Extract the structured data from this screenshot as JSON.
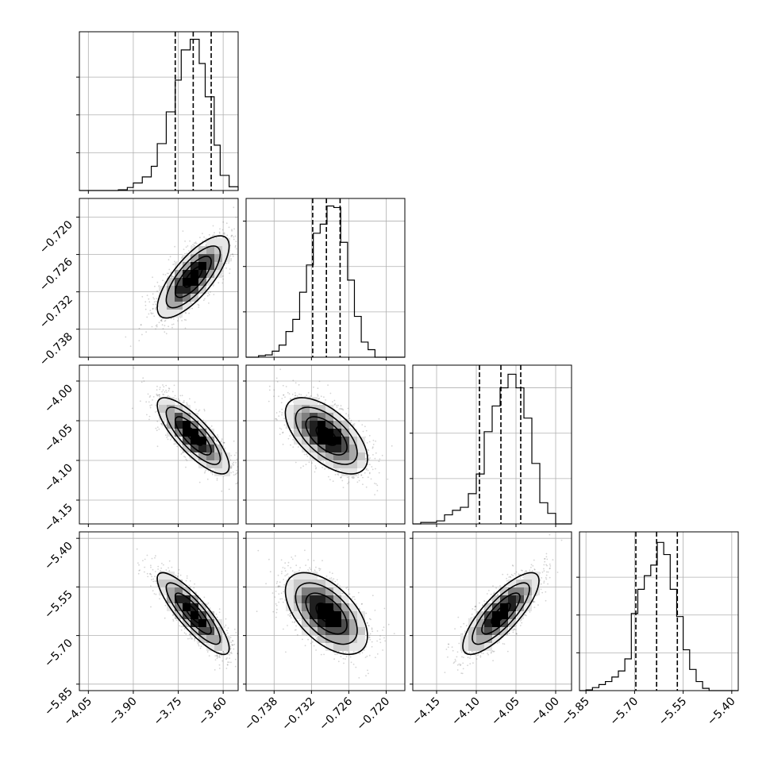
{
  "chart_data": {
    "type": "corner",
    "title": "",
    "grid": true,
    "parameters": [
      {
        "range": [
          -4.08,
          -3.55
        ],
        "ticks": [
          "−4.05",
          "−3.90",
          "−3.75",
          "−3.60"
        ],
        "tick_values": [
          -4.05,
          -3.9,
          -3.75,
          -3.6
        ],
        "quantiles": [
          -3.76,
          -3.7,
          -3.64
        ],
        "hist_edges": [
          -3.95,
          -3.92,
          -3.9,
          -3.87,
          -3.84,
          -3.82,
          -3.79,
          -3.76,
          -3.74,
          -3.71,
          -3.68,
          -3.66,
          -3.63,
          -3.61,
          -3.58,
          -3.55
        ],
        "hist_heights": [
          0.005,
          0.02,
          0.05,
          0.09,
          0.16,
          0.31,
          0.52,
          0.73,
          0.93,
          1.0,
          0.84,
          0.62,
          0.3,
          0.1,
          0.025
        ],
        "hist_ticks": [
          0.25,
          0.5,
          0.75
        ]
      },
      {
        "range": [
          -0.7425,
          -0.717
        ],
        "ticks": [
          "−0.738",
          "−0.732",
          "−0.726",
          "−0.720"
        ],
        "tick_values": [
          -0.738,
          -0.732,
          -0.726,
          -0.72
        ],
        "quantiles": [
          -0.7318,
          -0.7296,
          -0.7274
        ],
        "hist_edges": [
          -0.7405,
          -0.7394,
          -0.7383,
          -0.7372,
          -0.7361,
          -0.735,
          -0.7339,
          -0.7328,
          -0.7317,
          -0.7306,
          -0.7295,
          -0.7284,
          -0.7273,
          -0.7262,
          -0.7251,
          -0.724,
          -0.7229,
          -0.7218
        ],
        "hist_heights": [
          0.01,
          0.015,
          0.04,
          0.08,
          0.17,
          0.25,
          0.43,
          0.61,
          0.82,
          0.88,
          1.0,
          0.99,
          0.76,
          0.51,
          0.27,
          0.1,
          0.05
        ],
        "hist_ticks": [
          0.3,
          0.6,
          0.9
        ]
      },
      {
        "range": [
          -4.18,
          -3.98
        ],
        "ticks": [
          "−4.15",
          "−4.10",
          "−4.05",
          "−4.00"
        ],
        "tick_values": [
          -4.15,
          -4.1,
          -4.05,
          -4.0
        ],
        "quantiles": [
          -4.096,
          -4.069,
          -4.044
        ],
        "hist_edges": [
          -4.17,
          -4.16,
          -4.15,
          -4.14,
          -4.13,
          -4.12,
          -4.11,
          -4.1,
          -4.09,
          -4.08,
          -4.07,
          -4.06,
          -4.05,
          -4.04,
          -4.03,
          -4.02,
          -4.01,
          -4.0
        ],
        "hist_heights": [
          0.01,
          0.01,
          0.02,
          0.06,
          0.09,
          0.11,
          0.2,
          0.33,
          0.61,
          0.78,
          0.9,
          0.99,
          0.9,
          0.7,
          0.4,
          0.14,
          0.07
        ],
        "hist_ticks": [
          0.3,
          0.6,
          0.9
        ]
      },
      {
        "range": [
          -5.87,
          -5.38
        ],
        "ticks": [
          "−5.85",
          "−5.70",
          "−5.55",
          "−5.40"
        ],
        "tick_values": [
          -5.85,
          -5.7,
          -5.55,
          -5.4
        ],
        "quantiles": [
          -5.696,
          -5.632,
          -5.568
        ],
        "hist_edges": [
          -5.85,
          -5.83,
          -5.81,
          -5.79,
          -5.77,
          -5.75,
          -5.73,
          -5.71,
          -5.69,
          -5.67,
          -5.65,
          -5.63,
          -5.61,
          -5.59,
          -5.57,
          -5.55,
          -5.53,
          -5.51,
          -5.49,
          -5.47
        ],
        "hist_heights": [
          0.005,
          0.02,
          0.04,
          0.06,
          0.09,
          0.13,
          0.21,
          0.51,
          0.67,
          0.76,
          0.83,
          0.98,
          0.9,
          0.67,
          0.49,
          0.27,
          0.14,
          0.06,
          0.015
        ],
        "hist_ticks": [
          0.25,
          0.5,
          0.75
        ]
      }
    ],
    "pairs": [
      {
        "row": 1,
        "col": 0,
        "mean": [
          -3.7,
          -0.7296
        ],
        "sd": [
          0.06,
          0.0033
        ],
        "rho": 0.75,
        "corr_points": 1500
      },
      {
        "row": 2,
        "col": 0,
        "mean": [
          -3.7,
          -4.069
        ],
        "sd": [
          0.06,
          0.024
        ],
        "rho": -0.8,
        "corr_points": 1500
      },
      {
        "row": 2,
        "col": 1,
        "mean": [
          -0.7296,
          -4.069
        ],
        "sd": [
          0.0033,
          0.024
        ],
        "rho": -0.6,
        "corr_points": 1500
      },
      {
        "row": 3,
        "col": 0,
        "mean": [
          -3.7,
          -5.632
        ],
        "sd": [
          0.06,
          0.063
        ],
        "rho": -0.85,
        "corr_points": 1500
      },
      {
        "row": 3,
        "col": 1,
        "mean": [
          -0.7296,
          -5.632
        ],
        "sd": [
          0.0033,
          0.063
        ],
        "rho": -0.55,
        "corr_points": 1500
      },
      {
        "row": 3,
        "col": 2,
        "mean": [
          -4.069,
          -5.632
        ],
        "sd": [
          0.024,
          0.063
        ],
        "rho": 0.8,
        "corr_points": 1500
      }
    ],
    "contour_levels_sigma": [
      0.5,
      1.0,
      1.5,
      2.0
    ]
  }
}
